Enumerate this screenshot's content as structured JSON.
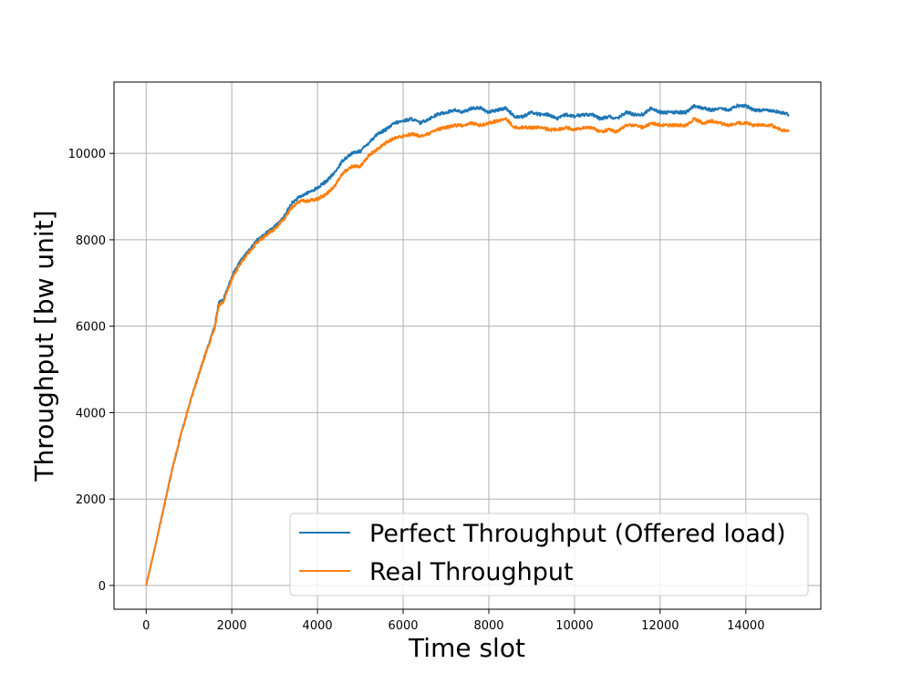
{
  "chart_data": {
    "type": "line",
    "title": "",
    "xlabel": "Time slot",
    "ylabel": "Throughput [bw unit]",
    "xlim": [
      -750,
      15750
    ],
    "ylim": [
      -550,
      11650
    ],
    "xticks": [
      0,
      2000,
      4000,
      6000,
      8000,
      10000,
      12000,
      14000
    ],
    "yticks": [
      0,
      2000,
      4000,
      6000,
      8000,
      10000
    ],
    "grid": true,
    "legend_position": "lower-right",
    "series": [
      {
        "name": "Perfect Throughput (Offered load)",
        "color": "#1f77b4",
        "points": [
          [
            0,
            0
          ],
          [
            200,
            850
          ],
          [
            400,
            1750
          ],
          [
            600,
            2650
          ],
          [
            800,
            3450
          ],
          [
            1000,
            4150
          ],
          [
            1200,
            4800
          ],
          [
            1400,
            5400
          ],
          [
            1600,
            6000
          ],
          [
            1700,
            6550
          ],
          [
            1800,
            6600
          ],
          [
            2000,
            7150
          ],
          [
            2200,
            7500
          ],
          [
            2400,
            7750
          ],
          [
            2600,
            8000
          ],
          [
            2800,
            8150
          ],
          [
            3000,
            8300
          ],
          [
            3200,
            8500
          ],
          [
            3400,
            8850
          ],
          [
            3600,
            9000
          ],
          [
            3800,
            9100
          ],
          [
            4000,
            9200
          ],
          [
            4200,
            9350
          ],
          [
            4400,
            9550
          ],
          [
            4600,
            9850
          ],
          [
            4800,
            10000
          ],
          [
            5000,
            10050
          ],
          [
            5200,
            10250
          ],
          [
            5400,
            10450
          ],
          [
            5600,
            10550
          ],
          [
            5800,
            10700
          ],
          [
            6000,
            10750
          ],
          [
            6200,
            10800
          ],
          [
            6400,
            10700
          ],
          [
            6600,
            10800
          ],
          [
            6800,
            10900
          ],
          [
            7000,
            10950
          ],
          [
            7200,
            11000
          ],
          [
            7400,
            10950
          ],
          [
            7600,
            11050
          ],
          [
            7800,
            11050
          ],
          [
            8000,
            10950
          ],
          [
            8200,
            11000
          ],
          [
            8400,
            11050
          ],
          [
            8600,
            10850
          ],
          [
            8800,
            10850
          ],
          [
            9000,
            10950
          ],
          [
            9200,
            10900
          ],
          [
            9400,
            10900
          ],
          [
            9600,
            10800
          ],
          [
            9800,
            10900
          ],
          [
            10000,
            10850
          ],
          [
            10200,
            10900
          ],
          [
            10400,
            10900
          ],
          [
            10600,
            10800
          ],
          [
            10800,
            10850
          ],
          [
            11000,
            10800
          ],
          [
            11200,
            10950
          ],
          [
            11400,
            10900
          ],
          [
            11600,
            10900
          ],
          [
            11800,
            11050
          ],
          [
            12000,
            10950
          ],
          [
            12200,
            10950
          ],
          [
            12400,
            10950
          ],
          [
            12600,
            10950
          ],
          [
            12800,
            11100
          ],
          [
            13000,
            11050
          ],
          [
            13200,
            11000
          ],
          [
            13400,
            11050
          ],
          [
            13600,
            11000
          ],
          [
            13800,
            11100
          ],
          [
            14000,
            11100
          ],
          [
            14200,
            11000
          ],
          [
            14400,
            11000
          ],
          [
            14600,
            11000
          ],
          [
            14800,
            10950
          ],
          [
            15000,
            10900
          ]
        ]
      },
      {
        "name": "Real Throughput",
        "color": "#ff7f0e",
        "points": [
          [
            0,
            0
          ],
          [
            200,
            850
          ],
          [
            400,
            1750
          ],
          [
            600,
            2650
          ],
          [
            800,
            3450
          ],
          [
            1000,
            4150
          ],
          [
            1200,
            4800
          ],
          [
            1400,
            5400
          ],
          [
            1600,
            5950
          ],
          [
            1700,
            6500
          ],
          [
            1800,
            6550
          ],
          [
            2000,
            7100
          ],
          [
            2200,
            7450
          ],
          [
            2400,
            7700
          ],
          [
            2600,
            7950
          ],
          [
            2800,
            8100
          ],
          [
            3000,
            8250
          ],
          [
            3200,
            8450
          ],
          [
            3400,
            8750
          ],
          [
            3600,
            8900
          ],
          [
            3800,
            8900
          ],
          [
            4000,
            8950
          ],
          [
            4200,
            9050
          ],
          [
            4400,
            9250
          ],
          [
            4600,
            9550
          ],
          [
            4800,
            9700
          ],
          [
            5000,
            9700
          ],
          [
            5200,
            9950
          ],
          [
            5400,
            10100
          ],
          [
            5600,
            10250
          ],
          [
            5800,
            10350
          ],
          [
            6000,
            10400
          ],
          [
            6200,
            10450
          ],
          [
            6400,
            10400
          ],
          [
            6600,
            10450
          ],
          [
            6800,
            10550
          ],
          [
            7000,
            10600
          ],
          [
            7200,
            10650
          ],
          [
            7400,
            10650
          ],
          [
            7600,
            10700
          ],
          [
            7800,
            10650
          ],
          [
            8000,
            10700
          ],
          [
            8200,
            10750
          ],
          [
            8400,
            10800
          ],
          [
            8600,
            10600
          ],
          [
            8800,
            10600
          ],
          [
            9000,
            10600
          ],
          [
            9200,
            10600
          ],
          [
            9400,
            10550
          ],
          [
            9600,
            10550
          ],
          [
            9800,
            10600
          ],
          [
            10000,
            10550
          ],
          [
            10200,
            10600
          ],
          [
            10400,
            10600
          ],
          [
            10600,
            10500
          ],
          [
            10800,
            10550
          ],
          [
            11000,
            10500
          ],
          [
            11200,
            10650
          ],
          [
            11400,
            10650
          ],
          [
            11600,
            10600
          ],
          [
            11800,
            10700
          ],
          [
            12000,
            10650
          ],
          [
            12200,
            10650
          ],
          [
            12400,
            10650
          ],
          [
            12600,
            10650
          ],
          [
            12800,
            10800
          ],
          [
            13000,
            10700
          ],
          [
            13200,
            10750
          ],
          [
            13400,
            10700
          ],
          [
            13600,
            10650
          ],
          [
            13800,
            10700
          ],
          [
            14000,
            10700
          ],
          [
            14200,
            10650
          ],
          [
            14400,
            10650
          ],
          [
            14600,
            10650
          ],
          [
            14800,
            10550
          ],
          [
            15000,
            10500
          ]
        ]
      }
    ]
  }
}
